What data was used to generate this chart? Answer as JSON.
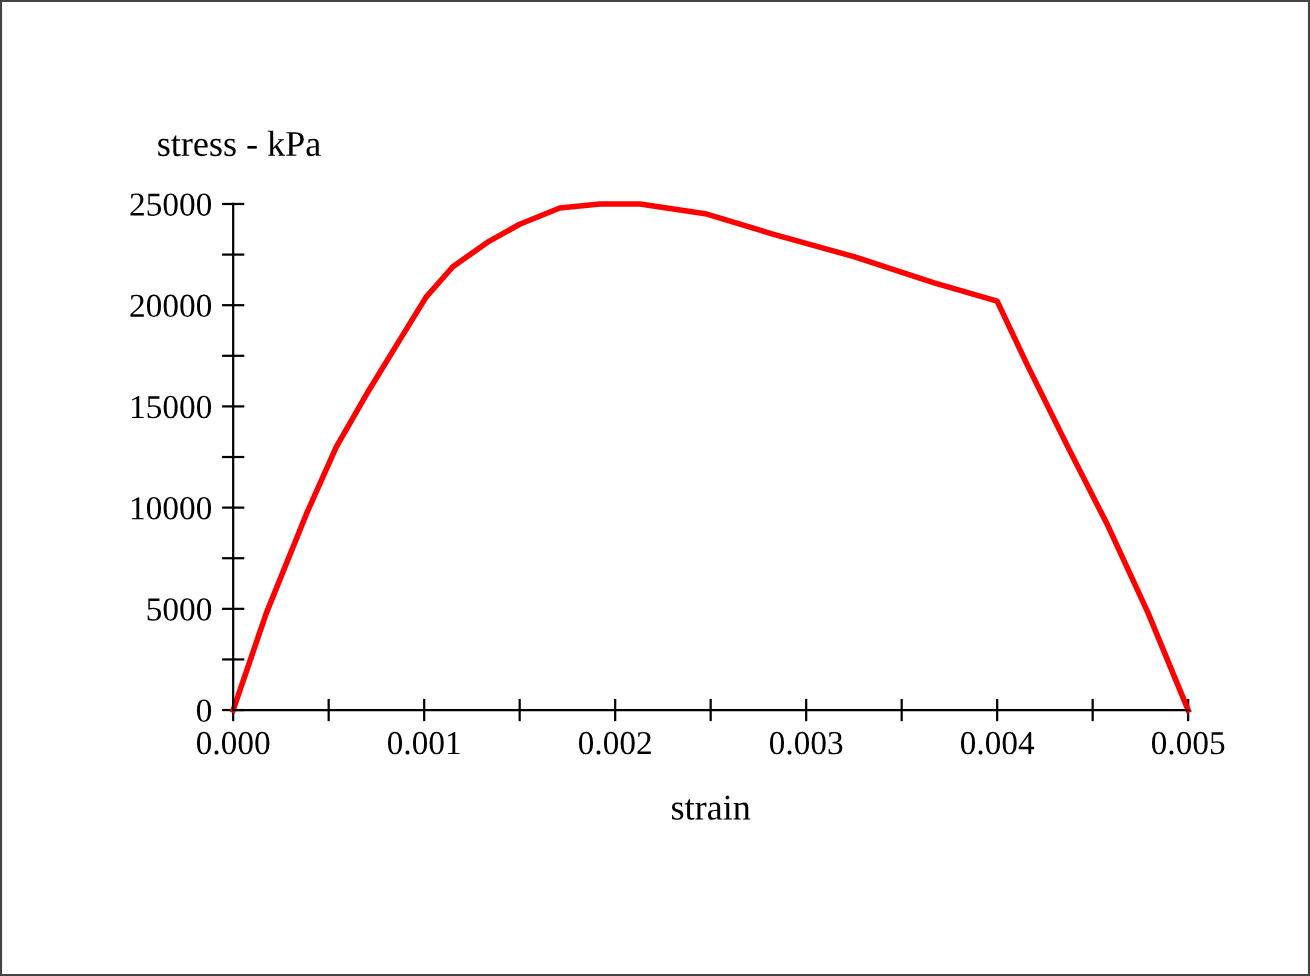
{
  "chart_data": {
    "type": "line",
    "xlabel": "strain",
    "ylabel": "stress - kPa",
    "x": [
      0,
      0.000174,
      0.000384,
      0.00054,
      0.000698,
      0.000873,
      0.00101,
      0.00115,
      0.00133,
      0.0015,
      0.00171,
      0.00192,
      0.00213,
      0.00248,
      0.00283,
      0.00325,
      0.00367,
      0.004,
      0.00416,
      0.00437,
      0.00458,
      0.00479,
      0.005
    ],
    "series": [
      {
        "color": "#ff0000",
        "values": [
          0,
          4800,
          9700,
          13000,
          15600,
          18300,
          20400,
          21900,
          23100,
          24000,
          24800,
          25000,
          25000,
          24500,
          23500,
          22400,
          21100,
          20200,
          17000,
          13000,
          9100,
          4800,
          0
        ]
      }
    ],
    "xlim": [
      0,
      0.005
    ],
    "ylim": [
      0,
      25000
    ],
    "xticks": [
      {
        "value": 0,
        "label": "0.000"
      },
      {
        "value": 0.0005,
        "label": null
      },
      {
        "value": 0.001,
        "label": "0.001"
      },
      {
        "value": 0.0015,
        "label": null
      },
      {
        "value": 0.002,
        "label": "0.002"
      },
      {
        "value": 0.0025,
        "label": null
      },
      {
        "value": 0.003,
        "label": "0.003"
      },
      {
        "value": 0.0035,
        "label": null
      },
      {
        "value": 0.004,
        "label": "0.004"
      },
      {
        "value": 0.0045,
        "label": null
      },
      {
        "value": 0.005,
        "label": "0.005"
      }
    ],
    "yticks": [
      0,
      {
        "value": 2500,
        "label": null
      },
      5000,
      {
        "value": 7500,
        "label": null
      },
      10000,
      {
        "value": 12500,
        "label": null
      },
      15000,
      {
        "value": 17500,
        "label": null
      },
      20000,
      {
        "value": 22500,
        "label": null
      },
      25000
    ],
    "grid": false,
    "legend": false,
    "marker": "none",
    "line_style": "solid"
  }
}
